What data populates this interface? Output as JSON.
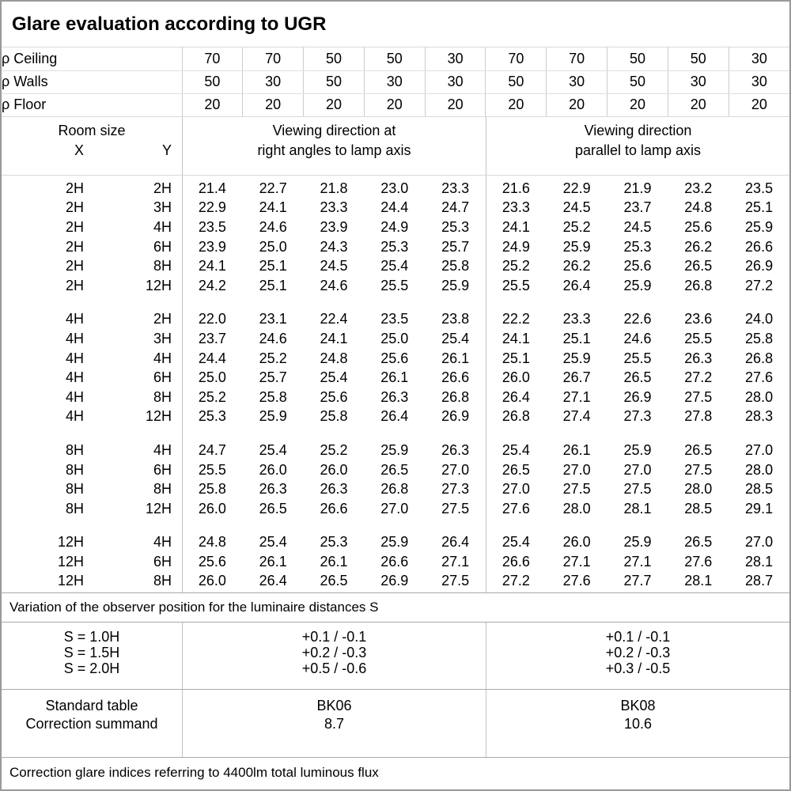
{
  "title": "Glare evaluation according to UGR",
  "reflectances": {
    "rows": [
      {
        "label": "ρ Ceiling",
        "values": [
          "70",
          "70",
          "50",
          "50",
          "30",
          "70",
          "70",
          "50",
          "50",
          "30"
        ]
      },
      {
        "label": "ρ Walls",
        "values": [
          "50",
          "30",
          "50",
          "30",
          "30",
          "50",
          "30",
          "50",
          "30",
          "30"
        ]
      },
      {
        "label": "ρ Floor",
        "values": [
          "20",
          "20",
          "20",
          "20",
          "20",
          "20",
          "20",
          "20",
          "20",
          "20"
        ]
      }
    ]
  },
  "header": {
    "room_size_label": "Room size",
    "x_label": "X",
    "y_label": "Y",
    "group1_line1": "Viewing direction at",
    "group1_line2": "right angles to lamp axis",
    "group2_line1": "Viewing direction",
    "group2_line2": "parallel to lamp axis"
  },
  "ugr_blocks": [
    {
      "rows": [
        {
          "x": "2H",
          "y": "2H",
          "values": [
            "21.4",
            "22.7",
            "21.8",
            "23.0",
            "23.3",
            "21.6",
            "22.9",
            "21.9",
            "23.2",
            "23.5"
          ]
        },
        {
          "x": "2H",
          "y": "3H",
          "values": [
            "22.9",
            "24.1",
            "23.3",
            "24.4",
            "24.7",
            "23.3",
            "24.5",
            "23.7",
            "24.8",
            "25.1"
          ]
        },
        {
          "x": "2H",
          "y": "4H",
          "values": [
            "23.5",
            "24.6",
            "23.9",
            "24.9",
            "25.3",
            "24.1",
            "25.2",
            "24.5",
            "25.6",
            "25.9"
          ]
        },
        {
          "x": "2H",
          "y": "6H",
          "values": [
            "23.9",
            "25.0",
            "24.3",
            "25.3",
            "25.7",
            "24.9",
            "25.9",
            "25.3",
            "26.2",
            "26.6"
          ]
        },
        {
          "x": "2H",
          "y": "8H",
          "values": [
            "24.1",
            "25.1",
            "24.5",
            "25.4",
            "25.8",
            "25.2",
            "26.2",
            "25.6",
            "26.5",
            "26.9"
          ]
        },
        {
          "x": "2H",
          "y": "12H",
          "values": [
            "24.2",
            "25.1",
            "24.6",
            "25.5",
            "25.9",
            "25.5",
            "26.4",
            "25.9",
            "26.8",
            "27.2"
          ]
        }
      ]
    },
    {
      "rows": [
        {
          "x": "4H",
          "y": "2H",
          "values": [
            "22.0",
            "23.1",
            "22.4",
            "23.5",
            "23.8",
            "22.2",
            "23.3",
            "22.6",
            "23.6",
            "24.0"
          ]
        },
        {
          "x": "4H",
          "y": "3H",
          "values": [
            "23.7",
            "24.6",
            "24.1",
            "25.0",
            "25.4",
            "24.1",
            "25.1",
            "24.6",
            "25.5",
            "25.8"
          ]
        },
        {
          "x": "4H",
          "y": "4H",
          "values": [
            "24.4",
            "25.2",
            "24.8",
            "25.6",
            "26.1",
            "25.1",
            "25.9",
            "25.5",
            "26.3",
            "26.8"
          ]
        },
        {
          "x": "4H",
          "y": "6H",
          "values": [
            "25.0",
            "25.7",
            "25.4",
            "26.1",
            "26.6",
            "26.0",
            "26.7",
            "26.5",
            "27.2",
            "27.6"
          ]
        },
        {
          "x": "4H",
          "y": "8H",
          "values": [
            "25.2",
            "25.8",
            "25.6",
            "26.3",
            "26.8",
            "26.4",
            "27.1",
            "26.9",
            "27.5",
            "28.0"
          ]
        },
        {
          "x": "4H",
          "y": "12H",
          "values": [
            "25.3",
            "25.9",
            "25.8",
            "26.4",
            "26.9",
            "26.8",
            "27.4",
            "27.3",
            "27.8",
            "28.3"
          ]
        }
      ]
    },
    {
      "rows": [
        {
          "x": "8H",
          "y": "4H",
          "values": [
            "24.7",
            "25.4",
            "25.2",
            "25.9",
            "26.3",
            "25.4",
            "26.1",
            "25.9",
            "26.5",
            "27.0"
          ]
        },
        {
          "x": "8H",
          "y": "6H",
          "values": [
            "25.5",
            "26.0",
            "26.0",
            "26.5",
            "27.0",
            "26.5",
            "27.0",
            "27.0",
            "27.5",
            "28.0"
          ]
        },
        {
          "x": "8H",
          "y": "8H",
          "values": [
            "25.8",
            "26.3",
            "26.3",
            "26.8",
            "27.3",
            "27.0",
            "27.5",
            "27.5",
            "28.0",
            "28.5"
          ]
        },
        {
          "x": "8H",
          "y": "12H",
          "values": [
            "26.0",
            "26.5",
            "26.6",
            "27.0",
            "27.5",
            "27.6",
            "28.0",
            "28.1",
            "28.5",
            "29.1"
          ]
        }
      ]
    },
    {
      "rows": [
        {
          "x": "12H",
          "y": "4H",
          "values": [
            "24.8",
            "25.4",
            "25.3",
            "25.9",
            "26.4",
            "25.4",
            "26.0",
            "25.9",
            "26.5",
            "27.0"
          ]
        },
        {
          "x": "12H",
          "y": "6H",
          "values": [
            "25.6",
            "26.1",
            "26.1",
            "26.6",
            "27.1",
            "26.6",
            "27.1",
            "27.1",
            "27.6",
            "28.1"
          ]
        },
        {
          "x": "12H",
          "y": "8H",
          "values": [
            "26.0",
            "26.4",
            "26.5",
            "26.9",
            "27.5",
            "27.2",
            "27.6",
            "27.7",
            "28.1",
            "28.7"
          ]
        }
      ]
    }
  ],
  "variation_note": "Variation of the observer position for the luminaire distances S",
  "s_section": {
    "labels": [
      "S = 1.0H",
      "S = 1.5H",
      "S = 2.0H"
    ],
    "group1": [
      "+0.1 / -0.1",
      "+0.2 / -0.3",
      "+0.5 / -0.6"
    ],
    "group2": [
      "+0.1 / -0.1",
      "+0.2 / -0.3",
      "+0.3 / -0.5"
    ]
  },
  "standard_section": {
    "labels": [
      "Standard table",
      "Correction summand"
    ],
    "group1": [
      "BK06",
      "8.7"
    ],
    "group2": [
      "BK08",
      "10.6"
    ]
  },
  "footer_note": "Correction glare indices referring to 4400lm total luminous flux"
}
